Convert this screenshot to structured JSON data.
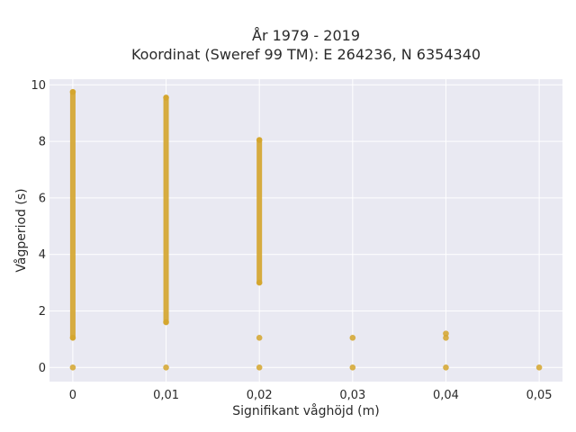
{
  "chart_data": {
    "type": "scatter",
    "title": [
      "År 1979 - 2019",
      "Koordinat (Sweref 99 TM): E 264236, N 6354340"
    ],
    "xlabel": "Signifikant våghöjd (m)",
    "ylabel": "Vågperiod (s)",
    "xlim": [
      -0.0025,
      0.0525
    ],
    "ylim": [
      -0.5,
      10.2
    ],
    "x_ticks": [
      {
        "value": 0,
        "label": "0"
      },
      {
        "value": 0.01,
        "label": "0,01"
      },
      {
        "value": 0.02,
        "label": "0,02"
      },
      {
        "value": 0.03,
        "label": "0,03"
      },
      {
        "value": 0.04,
        "label": "0,04"
      },
      {
        "value": 0.05,
        "label": "0,05"
      }
    ],
    "y_ticks": [
      {
        "value": 0,
        "label": "0"
      },
      {
        "value": 2,
        "label": "2"
      },
      {
        "value": 4,
        "label": "4"
      },
      {
        "value": 6,
        "label": "6"
      },
      {
        "value": 8,
        "label": "8"
      },
      {
        "value": 10,
        "label": "10"
      }
    ],
    "grid": true,
    "marker_color": "#d4a52c",
    "background_color": "#e9e9f2",
    "columns": [
      {
        "x": 0,
        "y_range": [
          1.05,
          9.75
        ],
        "points": [
          0,
          1.05,
          9.75
        ]
      },
      {
        "x": 0.01,
        "y_range": [
          1.6,
          9.55
        ],
        "points": [
          0,
          1.6,
          9.55
        ]
      },
      {
        "x": 0.02,
        "y_range": [
          3.0,
          8.05
        ],
        "points": [
          0,
          1.05,
          3.0,
          8.05
        ]
      },
      {
        "x": 0.03,
        "y_range": null,
        "points": [
          0,
          1.05
        ]
      },
      {
        "x": 0.04,
        "y_range": null,
        "points": [
          0,
          1.05,
          1.2
        ]
      },
      {
        "x": 0.05,
        "y_range": null,
        "points": [
          0
        ]
      }
    ]
  }
}
